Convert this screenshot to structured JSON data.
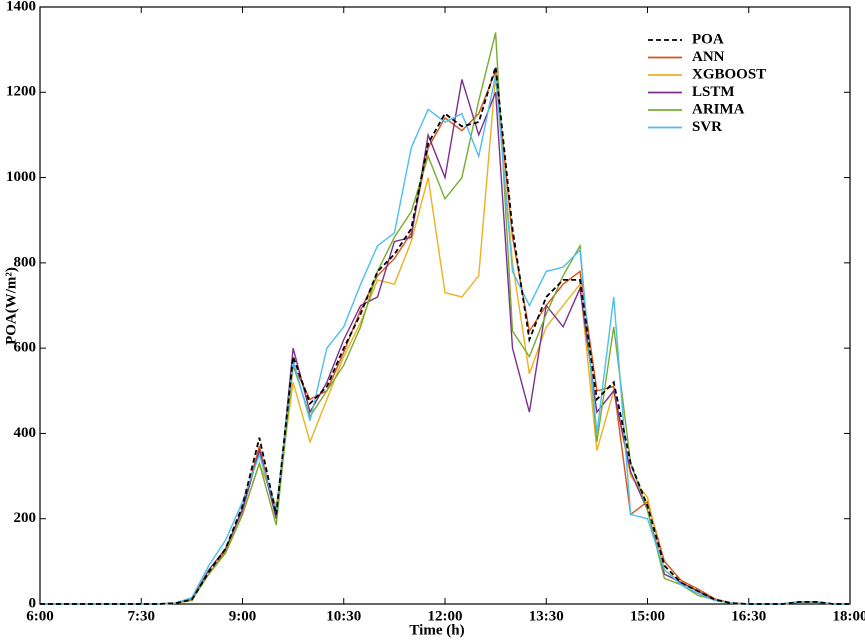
{
  "chart_data": {
    "type": "line",
    "xlabel": "Time (h)",
    "ylabel": "POA(W/m²)",
    "x": [
      6,
      6.25,
      6.5,
      6.75,
      7,
      7.25,
      7.5,
      7.75,
      8,
      8.25,
      8.5,
      8.75,
      9,
      9.25,
      9.5,
      9.75,
      10,
      10.25,
      10.5,
      10.75,
      11,
      11.25,
      11.5,
      11.75,
      12,
      12.25,
      12.5,
      12.75,
      13,
      13.25,
      13.5,
      13.75,
      14,
      14.25,
      14.5,
      14.75,
      15,
      15.25,
      15.5,
      15.75,
      16,
      16.25,
      16.5,
      16.75,
      17,
      17.25,
      17.5,
      17.75,
      18
    ],
    "series": [
      {
        "name": "POA",
        "color": "#000000",
        "dashed": true,
        "values": [
          0,
          0,
          0,
          0,
          0,
          0,
          0,
          0,
          2,
          10,
          75,
          130,
          230,
          390,
          210,
          580,
          470,
          510,
          600,
          680,
          780,
          820,
          880,
          1080,
          1150,
          1120,
          1130,
          1260,
          880,
          620,
          720,
          760,
          760,
          480,
          520,
          330,
          230,
          90,
          50,
          30,
          10,
          2,
          0,
          0,
          0,
          5,
          5,
          0,
          0
        ]
      },
      {
        "name": "ANN",
        "color": "#d95319",
        "values": [
          0,
          0,
          0,
          0,
          0,
          0,
          0,
          0,
          2,
          12,
          70,
          125,
          225,
          370,
          200,
          560,
          480,
          500,
          590,
          690,
          770,
          810,
          870,
          1070,
          1140,
          1110,
          1150,
          1250,
          860,
          640,
          700,
          750,
          780,
          500,
          510,
          210,
          240,
          100,
          55,
          35,
          12,
          2,
          0,
          0,
          0,
          5,
          5,
          0,
          0
        ]
      },
      {
        "name": "XGBOOST",
        "color": "#edb120",
        "values": [
          0,
          0,
          0,
          0,
          0,
          0,
          0,
          0,
          2,
          8,
          70,
          120,
          210,
          330,
          230,
          520,
          380,
          480,
          580,
          660,
          760,
          750,
          850,
          1000,
          730,
          720,
          770,
          1240,
          800,
          540,
          650,
          700,
          750,
          360,
          500,
          300,
          250,
          80,
          50,
          30,
          10,
          2,
          0,
          0,
          0,
          4,
          4,
          0,
          0
        ]
      },
      {
        "name": "LSTM",
        "color": "#7e2f8e",
        "values": [
          0,
          0,
          0,
          0,
          0,
          0,
          0,
          0,
          2,
          10,
          80,
          130,
          220,
          360,
          200,
          600,
          450,
          520,
          620,
          700,
          720,
          850,
          860,
          1100,
          1000,
          1230,
          1100,
          1200,
          600,
          450,
          700,
          650,
          740,
          450,
          500,
          310,
          220,
          70,
          50,
          30,
          10,
          2,
          0,
          0,
          0,
          5,
          5,
          0,
          0
        ]
      },
      {
        "name": "ARIMA",
        "color": "#77ac30",
        "values": [
          0,
          0,
          0,
          0,
          0,
          0,
          0,
          0,
          2,
          10,
          70,
          120,
          210,
          330,
          185,
          560,
          440,
          500,
          560,
          650,
          780,
          860,
          920,
          1050,
          950,
          1000,
          1180,
          1340,
          640,
          580,
          680,
          770,
          840,
          380,
          650,
          330,
          220,
          60,
          45,
          20,
          10,
          2,
          0,
          0,
          0,
          5,
          5,
          0,
          0
        ]
      },
      {
        "name": "SVR",
        "color": "#4dbeee",
        "values": [
          0,
          0,
          0,
          0,
          0,
          0,
          0,
          0,
          2,
          15,
          90,
          150,
          240,
          350,
          220,
          570,
          430,
          600,
          650,
          750,
          840,
          870,
          1070,
          1160,
          1130,
          1150,
          1050,
          1240,
          780,
          700,
          780,
          790,
          830,
          400,
          720,
          210,
          200,
          80,
          45,
          25,
          8,
          2,
          0,
          0,
          0,
          5,
          5,
          0,
          0
        ]
      }
    ],
    "xlim": [
      6,
      18
    ],
    "xticks": [
      {
        "value": 6,
        "label": "6:00"
      },
      {
        "value": 7.5,
        "label": "7:30"
      },
      {
        "value": 9,
        "label": "9:00"
      },
      {
        "value": 10.5,
        "label": "10:30"
      },
      {
        "value": 12,
        "label": "12:00"
      },
      {
        "value": 13.5,
        "label": "13:30"
      },
      {
        "value": 15,
        "label": "15:00"
      },
      {
        "value": 16.5,
        "label": "16:30"
      },
      {
        "value": 18,
        "label": "18:00"
      }
    ],
    "ylim": [
      0,
      1400
    ],
    "yticks": [
      0,
      200,
      400,
      600,
      800,
      1000,
      1200,
      1400
    ],
    "legend": "upper right"
  }
}
